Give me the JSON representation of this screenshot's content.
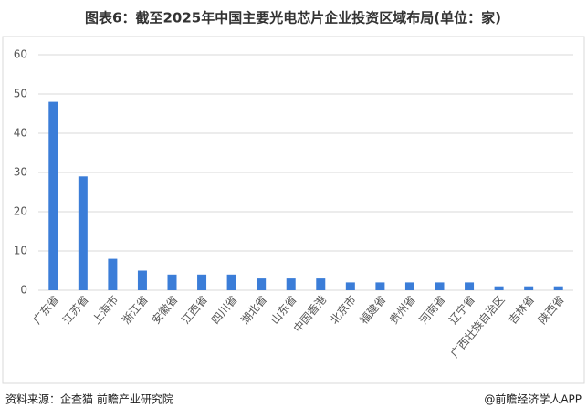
{
  "chart_data": {
    "type": "bar",
    "title": "图表6：截至2025年中国主要光电芯片企业投资区域布局(单位：家)",
    "categories": [
      "广东省",
      "江苏省",
      "上海市",
      "浙江省",
      "安徽省",
      "江西省",
      "四川省",
      "湖北省",
      "山东省",
      "中国香港",
      "北京市",
      "福建省",
      "贵州省",
      "河南省",
      "辽宁省",
      "广西壮族自治区",
      "吉林省",
      "陕西省"
    ],
    "values": [
      48,
      29,
      8,
      5,
      4,
      4,
      4,
      3,
      3,
      3,
      2,
      2,
      2,
      2,
      2,
      1,
      1,
      1
    ],
    "color": "#3b7dd8",
    "ylim": [
      0,
      60
    ],
    "yticks": [
      0,
      10,
      20,
      30,
      40,
      50,
      60
    ],
    "grid": true
  },
  "footer": {
    "source": "资料来源：企查猫 前瞻产业研究院",
    "credit": "@前瞻经济学人APP"
  }
}
